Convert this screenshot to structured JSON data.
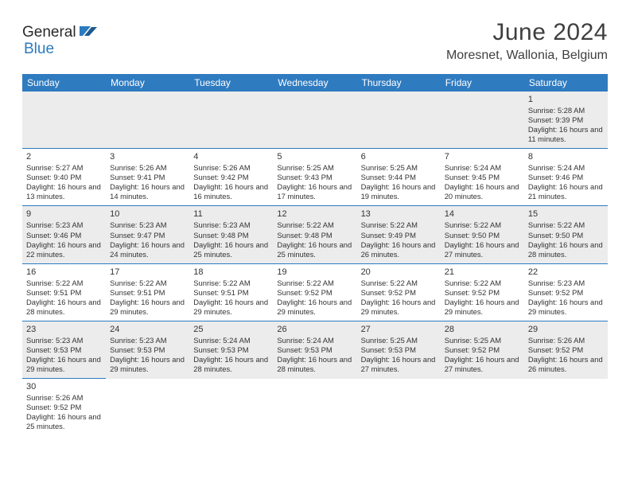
{
  "logo": {
    "part1": "General",
    "part2": "Blue"
  },
  "header": {
    "month_title": "June 2024",
    "location": "Moresnet, Wallonia, Belgium"
  },
  "colors": {
    "header_bg": "#2f7bc0",
    "header_text": "#ffffff",
    "alt_row_bg": "#ececec",
    "border": "#2f7bc0",
    "text": "#333333",
    "logo_blue": "#2b7bbf"
  },
  "weekdays": [
    "Sunday",
    "Monday",
    "Tuesday",
    "Wednesday",
    "Thursday",
    "Friday",
    "Saturday"
  ],
  "weeks": [
    [
      null,
      null,
      null,
      null,
      null,
      null,
      {
        "day": "1",
        "sunrise": "Sunrise: 5:28 AM",
        "sunset": "Sunset: 9:39 PM",
        "daylight": "Daylight: 16 hours and 11 minutes."
      }
    ],
    [
      {
        "day": "2",
        "sunrise": "Sunrise: 5:27 AM",
        "sunset": "Sunset: 9:40 PM",
        "daylight": "Daylight: 16 hours and 13 minutes."
      },
      {
        "day": "3",
        "sunrise": "Sunrise: 5:26 AM",
        "sunset": "Sunset: 9:41 PM",
        "daylight": "Daylight: 16 hours and 14 minutes."
      },
      {
        "day": "4",
        "sunrise": "Sunrise: 5:26 AM",
        "sunset": "Sunset: 9:42 PM",
        "daylight": "Daylight: 16 hours and 16 minutes."
      },
      {
        "day": "5",
        "sunrise": "Sunrise: 5:25 AM",
        "sunset": "Sunset: 9:43 PM",
        "daylight": "Daylight: 16 hours and 17 minutes."
      },
      {
        "day": "6",
        "sunrise": "Sunrise: 5:25 AM",
        "sunset": "Sunset: 9:44 PM",
        "daylight": "Daylight: 16 hours and 19 minutes."
      },
      {
        "day": "7",
        "sunrise": "Sunrise: 5:24 AM",
        "sunset": "Sunset: 9:45 PM",
        "daylight": "Daylight: 16 hours and 20 minutes."
      },
      {
        "day": "8",
        "sunrise": "Sunrise: 5:24 AM",
        "sunset": "Sunset: 9:46 PM",
        "daylight": "Daylight: 16 hours and 21 minutes."
      }
    ],
    [
      {
        "day": "9",
        "sunrise": "Sunrise: 5:23 AM",
        "sunset": "Sunset: 9:46 PM",
        "daylight": "Daylight: 16 hours and 22 minutes."
      },
      {
        "day": "10",
        "sunrise": "Sunrise: 5:23 AM",
        "sunset": "Sunset: 9:47 PM",
        "daylight": "Daylight: 16 hours and 24 minutes."
      },
      {
        "day": "11",
        "sunrise": "Sunrise: 5:23 AM",
        "sunset": "Sunset: 9:48 PM",
        "daylight": "Daylight: 16 hours and 25 minutes."
      },
      {
        "day": "12",
        "sunrise": "Sunrise: 5:22 AM",
        "sunset": "Sunset: 9:48 PM",
        "daylight": "Daylight: 16 hours and 25 minutes."
      },
      {
        "day": "13",
        "sunrise": "Sunrise: 5:22 AM",
        "sunset": "Sunset: 9:49 PM",
        "daylight": "Daylight: 16 hours and 26 minutes."
      },
      {
        "day": "14",
        "sunrise": "Sunrise: 5:22 AM",
        "sunset": "Sunset: 9:50 PM",
        "daylight": "Daylight: 16 hours and 27 minutes."
      },
      {
        "day": "15",
        "sunrise": "Sunrise: 5:22 AM",
        "sunset": "Sunset: 9:50 PM",
        "daylight": "Daylight: 16 hours and 28 minutes."
      }
    ],
    [
      {
        "day": "16",
        "sunrise": "Sunrise: 5:22 AM",
        "sunset": "Sunset: 9:51 PM",
        "daylight": "Daylight: 16 hours and 28 minutes."
      },
      {
        "day": "17",
        "sunrise": "Sunrise: 5:22 AM",
        "sunset": "Sunset: 9:51 PM",
        "daylight": "Daylight: 16 hours and 29 minutes."
      },
      {
        "day": "18",
        "sunrise": "Sunrise: 5:22 AM",
        "sunset": "Sunset: 9:51 PM",
        "daylight": "Daylight: 16 hours and 29 minutes."
      },
      {
        "day": "19",
        "sunrise": "Sunrise: 5:22 AM",
        "sunset": "Sunset: 9:52 PM",
        "daylight": "Daylight: 16 hours and 29 minutes."
      },
      {
        "day": "20",
        "sunrise": "Sunrise: 5:22 AM",
        "sunset": "Sunset: 9:52 PM",
        "daylight": "Daylight: 16 hours and 29 minutes."
      },
      {
        "day": "21",
        "sunrise": "Sunrise: 5:22 AM",
        "sunset": "Sunset: 9:52 PM",
        "daylight": "Daylight: 16 hours and 29 minutes."
      },
      {
        "day": "22",
        "sunrise": "Sunrise: 5:23 AM",
        "sunset": "Sunset: 9:52 PM",
        "daylight": "Daylight: 16 hours and 29 minutes."
      }
    ],
    [
      {
        "day": "23",
        "sunrise": "Sunrise: 5:23 AM",
        "sunset": "Sunset: 9:53 PM",
        "daylight": "Daylight: 16 hours and 29 minutes."
      },
      {
        "day": "24",
        "sunrise": "Sunrise: 5:23 AM",
        "sunset": "Sunset: 9:53 PM",
        "daylight": "Daylight: 16 hours and 29 minutes."
      },
      {
        "day": "25",
        "sunrise": "Sunrise: 5:24 AM",
        "sunset": "Sunset: 9:53 PM",
        "daylight": "Daylight: 16 hours and 28 minutes."
      },
      {
        "day": "26",
        "sunrise": "Sunrise: 5:24 AM",
        "sunset": "Sunset: 9:53 PM",
        "daylight": "Daylight: 16 hours and 28 minutes."
      },
      {
        "day": "27",
        "sunrise": "Sunrise: 5:25 AM",
        "sunset": "Sunset: 9:53 PM",
        "daylight": "Daylight: 16 hours and 27 minutes."
      },
      {
        "day": "28",
        "sunrise": "Sunrise: 5:25 AM",
        "sunset": "Sunset: 9:52 PM",
        "daylight": "Daylight: 16 hours and 27 minutes."
      },
      {
        "day": "29",
        "sunrise": "Sunrise: 5:26 AM",
        "sunset": "Sunset: 9:52 PM",
        "daylight": "Daylight: 16 hours and 26 minutes."
      }
    ],
    [
      {
        "day": "30",
        "sunrise": "Sunrise: 5:26 AM",
        "sunset": "Sunset: 9:52 PM",
        "daylight": "Daylight: 16 hours and 25 minutes."
      },
      null,
      null,
      null,
      null,
      null,
      null
    ]
  ]
}
